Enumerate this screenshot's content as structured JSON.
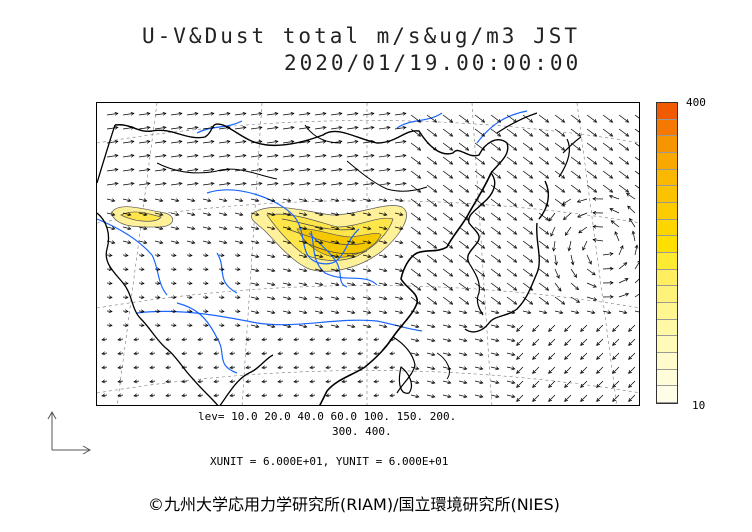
{
  "title": {
    "line1": "U-V&Dust total m/s&ug/m3 JST",
    "line2": "2020/01/19.00:00:00"
  },
  "colorbar": {
    "max_label": "400",
    "min_label": "10",
    "colors": [
      "#f05a00",
      "#f57800",
      "#f79500",
      "#f9a800",
      "#fab800",
      "#fbc200",
      "#fccb00",
      "#fdd600",
      "#fde000",
      "#feea30",
      "#ffef60",
      "#fff27a",
      "#fff690",
      "#fff8a4",
      "#fffab8",
      "#fffbca",
      "#fffcda",
      "#fffde8"
    ]
  },
  "levels": {
    "line1": "lev= 10.0 20.0 40.0 60.0 100. 150. 200.",
    "line2": "300. 400."
  },
  "units": "XUNIT = 6.000E+01, YUNIT = 6.000E+01",
  "copyright": "©九州大学応用力学研究所(RIAM)/国立環境研究所(NIES)",
  "map_colors": {
    "coast": "#000000",
    "river": "#1a66ff",
    "grid": "#777777",
    "arrow": "#000000",
    "dust_light": "#fff19a",
    "dust_mid": "#fde54a",
    "dust_dark": "#f6c800"
  }
}
